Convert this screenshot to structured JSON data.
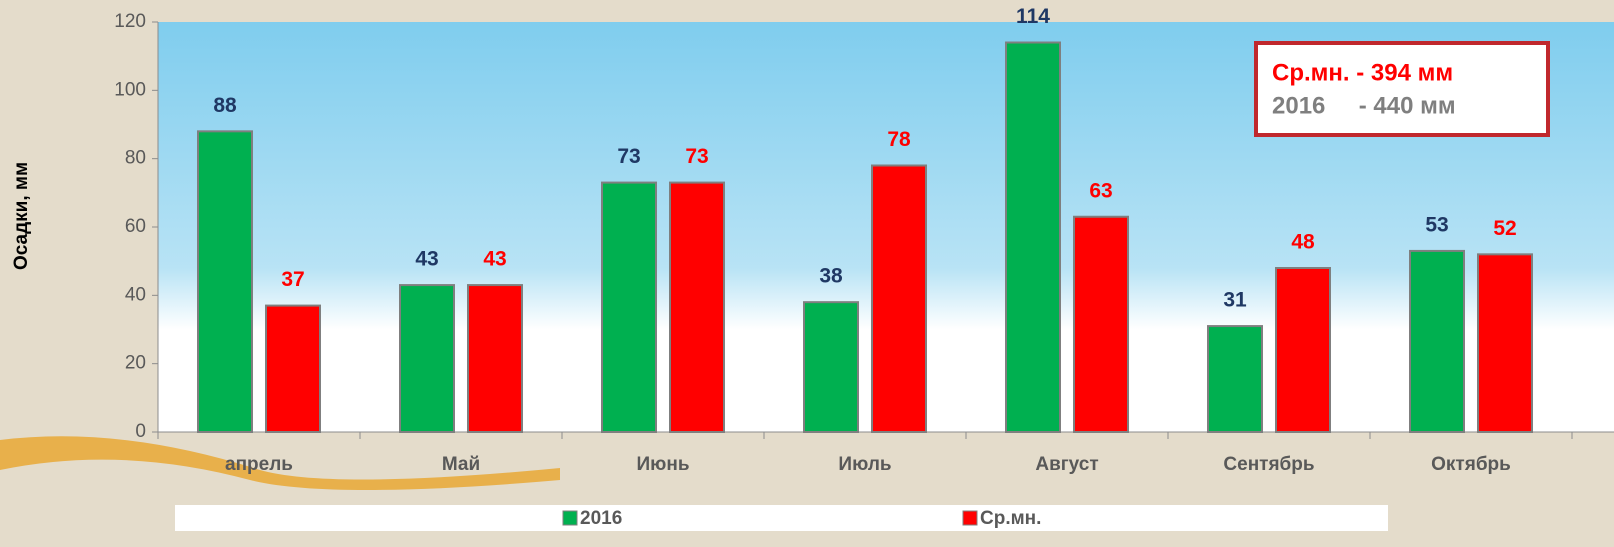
{
  "chart_data": {
    "type": "bar",
    "y_label": "Осадки, мм",
    "categories": [
      "апрель",
      "Май",
      "Июнь",
      "Июль",
      "Август",
      "Сентябрь",
      "Октябрь"
    ],
    "series": [
      {
        "name": "2016",
        "color": "#00b050",
        "label_color": "#1f3864",
        "values": [
          88,
          43,
          73,
          38,
          114,
          31,
          53
        ]
      },
      {
        "name": "Ср.мн.",
        "color": "#ff0000",
        "label_color": "#ff0000",
        "values": [
          37,
          43,
          73,
          78,
          63,
          48,
          52
        ]
      }
    ],
    "ylim": [
      0,
      120
    ],
    "yticks": [
      0,
      20,
      40,
      60,
      80,
      100,
      120
    ],
    "annotations": [
      {
        "text": "Ср.мн. - 394 мм",
        "color": "#ff0000"
      },
      {
        "text": "2016     - 440 мм",
        "color": "#7f7f7f"
      }
    ],
    "legend": "bottom"
  }
}
